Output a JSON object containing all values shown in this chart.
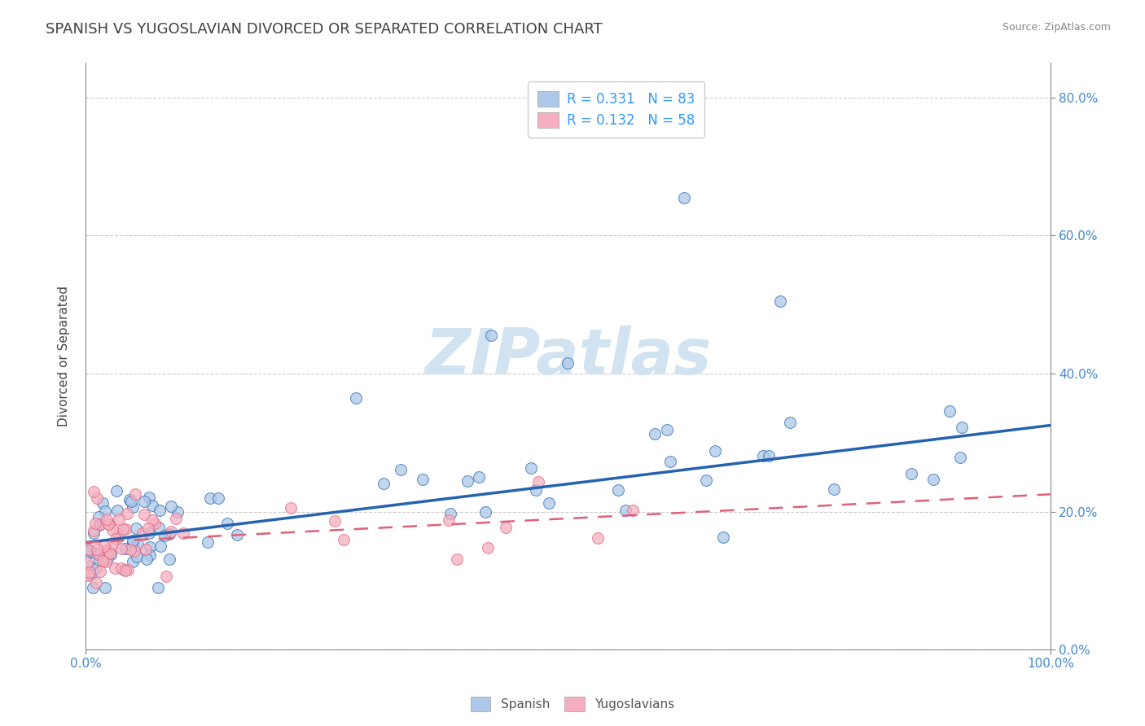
{
  "title": "SPANISH VS YUGOSLAVIAN DIVORCED OR SEPARATED CORRELATION CHART",
  "source": "Source: ZipAtlas.com",
  "ylabel": "Divorced or Separated",
  "xlim": [
    0,
    1.0
  ],
  "ylim": [
    0,
    0.85
  ],
  "yticks": [
    0.0,
    0.2,
    0.4,
    0.6,
    0.8
  ],
  "xtick_positions": [
    0.0,
    1.0
  ],
  "xtick_labels": [
    "0.0%",
    "100.0%"
  ],
  "background_color": "#ffffff",
  "grid_color": "#cccccc",
  "spanish_color": "#adc8e8",
  "yugoslav_color": "#f5afc0",
  "spanish_line_color": "#2563b0",
  "yugoslav_line_color": "#e0607a",
  "legend_text_color": "#3399ff",
  "watermark_color": "#cce0f0",
  "title_color": "#404040",
  "axis_color": "#888888",
  "tick_label_color": "#4488cc",
  "sp_line_y0": 0.155,
  "sp_line_y1": 0.325,
  "yu_line_y0": 0.155,
  "yu_line_y1": 0.225,
  "spanish_seed": 12,
  "yugoslav_seed": 34,
  "n_spanish": 83,
  "n_yugoslav": 58
}
